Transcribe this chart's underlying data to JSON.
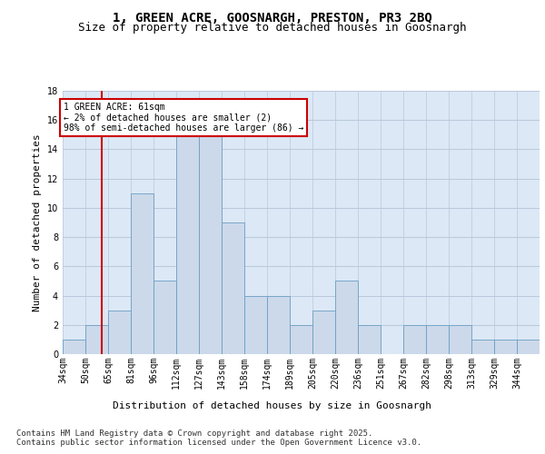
{
  "title_line1": "1, GREEN ACRE, GOOSNARGH, PRESTON, PR3 2BQ",
  "title_line2": "Size of property relative to detached houses in Goosnargh",
  "xlabel": "Distribution of detached houses by size in Goosnargh",
  "ylabel": "Number of detached properties",
  "bar_color": "#ccd9ea",
  "bar_edge_color": "#6a9ec5",
  "grid_color": "#b8c8dc",
  "background_color": "#dce8f5",
  "annotation_box_color": "#cc0000",
  "red_line_color": "#cc0000",
  "annotation_text": "1 GREEN ACRE: 61sqm\n← 2% of detached houses are smaller (2)\n98% of semi-detached houses are larger (86) →",
  "categories": [
    "34sqm",
    "50sqm",
    "65sqm",
    "81sqm",
    "96sqm",
    "112sqm",
    "127sqm",
    "143sqm",
    "158sqm",
    "174sqm",
    "189sqm",
    "205sqm",
    "220sqm",
    "236sqm",
    "251sqm",
    "267sqm",
    "282sqm",
    "298sqm",
    "313sqm",
    "329sqm",
    "344sqm"
  ],
  "bar_heights": [
    1,
    2,
    3,
    11,
    5,
    15,
    15,
    9,
    4,
    4,
    2,
    3,
    5,
    2,
    0,
    2,
    2,
    2,
    1,
    1,
    1
  ],
  "red_line_bin": 1,
  "ylim": [
    0,
    18
  ],
  "yticks": [
    0,
    2,
    4,
    6,
    8,
    10,
    12,
    14,
    16,
    18
  ],
  "footer_text": "Contains HM Land Registry data © Crown copyright and database right 2025.\nContains public sector information licensed under the Open Government Licence v3.0.",
  "title_fontsize": 10,
  "subtitle_fontsize": 9,
  "axis_label_fontsize": 8,
  "tick_fontsize": 7,
  "footer_fontsize": 6.5,
  "annotation_fontsize": 7
}
